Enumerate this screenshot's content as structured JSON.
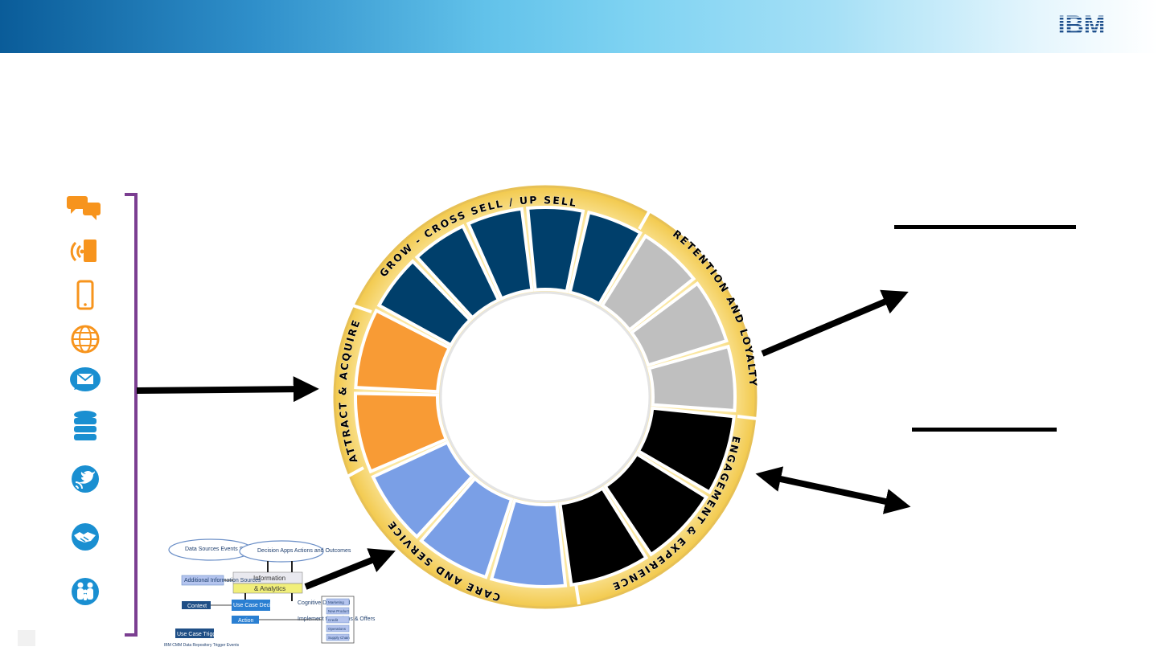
{
  "header": {
    "logo_text": "IBM"
  },
  "channels": {
    "icons": [
      {
        "name": "chat-bubbles-icon",
        "color": "#f7941d"
      },
      {
        "name": "broadcast-signal-icon",
        "color": "#f7941d"
      },
      {
        "name": "mobile-phone-icon",
        "color": "#f7941d"
      },
      {
        "name": "globe-icon",
        "color": "#f7941d"
      },
      {
        "name": "email-bubble-icon",
        "color": "#1a8fd1"
      },
      {
        "name": "database-icon",
        "color": "#1a8fd1"
      },
      {
        "name": "social-twitter-icon",
        "color": "#1a8fd1"
      },
      {
        "name": "handshake-icon",
        "color": "#1a8fd1"
      },
      {
        "name": "people-group-icon",
        "color": "#1a8fd1"
      }
    ]
  },
  "wheel": {
    "labels": {
      "grow": "GROW - CROSS SELL / UP SELL",
      "retention": "RETENTION AND LOYALTY",
      "engagement": "ENGAGEMENT & EXPERIENCE",
      "care": "CARE AND SERVICE",
      "attract": "ATTRACT & ACQUIRE"
    },
    "colors": {
      "grow": "#003f6b",
      "retention": "#bfbfbf",
      "engagement": "#000000",
      "care": "#7a9fe6",
      "attract": "#f89b35",
      "rim": "#f7d775"
    }
  },
  "mini_diagram": {
    "cloud_left": "Data Sources Events Systems",
    "cloud_right": "Decision Apps Actions and Outcomes",
    "center_top": "Information",
    "center_bottom": "& Analytics",
    "left_box": "Additional Information Sources",
    "core_box": "Use Case Decision Process",
    "action_box": "Action",
    "context_box": "Context",
    "trigger_box": "Use Case Trigger",
    "mid_label": "Cognitive Dashboard",
    "bottom_label": "Implement the Actions & Offers",
    "right_boxes": [
      "Marketing",
      "New Product",
      "Credit",
      "Operations",
      "Supply Chain"
    ],
    "caption": "IBM CMM Data Repository Trigger Events"
  }
}
